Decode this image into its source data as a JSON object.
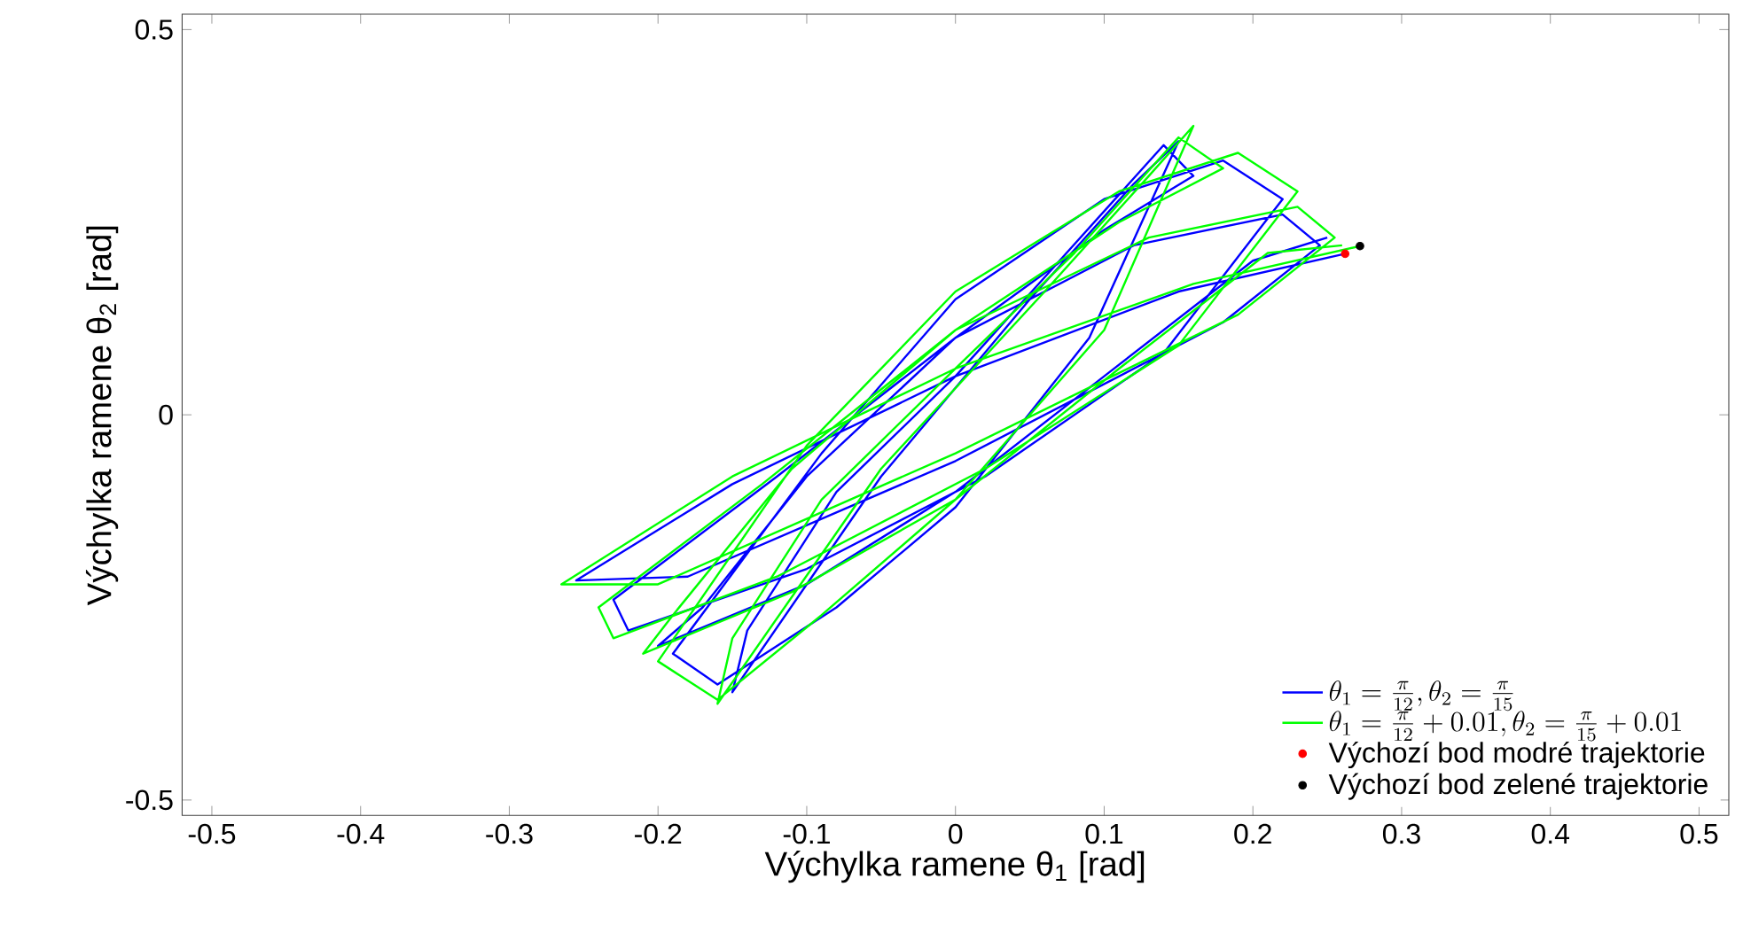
{
  "chart_data": {
    "type": "line",
    "xlabel": "Výchylka ramene θ$_{1}$ [rad]",
    "ylabel": "Výchylka ramene θ$_{2}$ [rad]",
    "xlim": [
      -0.52,
      0.52
    ],
    "ylim": [
      -0.52,
      0.52
    ],
    "xticks": [
      -0.5,
      -0.4,
      -0.3,
      -0.2,
      -0.1,
      0,
      0.1,
      0.2,
      0.3,
      0.4,
      0.5
    ],
    "yticks": [
      -0.5,
      0,
      0.5
    ],
    "grid": false,
    "legend": "bottom right",
    "series": [
      {
        "name": "\\theta_1 = \\frac{\\pi}{12}, \\theta_2 = \\frac{\\pi}{15}",
        "color": "#0000ff",
        "line_style": "solid",
        "marker": "none",
        "x": [
          0.262,
          0.15,
          0,
          -0.15,
          -0.255,
          -0.18,
          0,
          0.18,
          0.245,
          0.22,
          0.12,
          0,
          -0.12,
          -0.23,
          -0.22,
          -0.1,
          0.02,
          0.14,
          0.22,
          0.18,
          0.1,
          0,
          -0.09,
          -0.19,
          -0.16,
          -0.08,
          0,
          0.09,
          0.15,
          0.12,
          0.05,
          -0.05,
          -0.15,
          -0.14,
          -0.08,
          0,
          0.07,
          0.14,
          0.16,
          0.1,
          0,
          -0.1,
          -0.17,
          -0.2,
          -0.1,
          0,
          0.1,
          0.2,
          0.25
        ],
        "values": [
          0.209,
          0.16,
          0.05,
          -0.09,
          -0.215,
          -0.21,
          -0.06,
          0.12,
          0.22,
          0.26,
          0.22,
          0.1,
          -0.08,
          -0.24,
          -0.28,
          -0.2,
          -0.08,
          0.08,
          0.28,
          0.33,
          0.28,
          0.15,
          -0.05,
          -0.31,
          -0.35,
          -0.25,
          -0.12,
          0.1,
          0.355,
          0.3,
          0.15,
          -0.08,
          -0.36,
          -0.28,
          -0.1,
          0.05,
          0.2,
          0.35,
          0.31,
          0.24,
          0.1,
          -0.08,
          -0.25,
          -0.3,
          -0.22,
          -0.1,
          0.05,
          0.2,
          0.23
        ]
      },
      {
        "name": "\\theta_1 = \\frac{\\pi}{12} + 0.01, \\theta_2 = \\frac{\\pi}{15} + 0.01",
        "color": "#00ff00",
        "line_style": "solid",
        "marker": "none",
        "x": [
          0.272,
          0.16,
          0,
          -0.15,
          -0.265,
          -0.2,
          0,
          0.19,
          0.255,
          0.23,
          0.13,
          0,
          -0.13,
          -0.24,
          -0.23,
          -0.12,
          0.02,
          0.15,
          0.23,
          0.19,
          0.11,
          0,
          -0.1,
          -0.2,
          -0.16,
          -0.09,
          0,
          0.1,
          0.16,
          0.13,
          0.06,
          -0.05,
          -0.16,
          -0.15,
          -0.09,
          0,
          0.08,
          0.15,
          0.18,
          0.11,
          0,
          -0.11,
          -0.19,
          -0.21,
          -0.11,
          0,
          0.11,
          0.21,
          0.26
        ],
        "values": [
          0.219,
          0.17,
          0.06,
          -0.08,
          -0.22,
          -0.22,
          -0.05,
          0.13,
          0.23,
          0.27,
          0.23,
          0.11,
          -0.09,
          -0.25,
          -0.29,
          -0.21,
          -0.07,
          0.09,
          0.29,
          0.34,
          0.29,
          0.16,
          -0.04,
          -0.32,
          -0.37,
          -0.26,
          -0.11,
          0.11,
          0.375,
          0.31,
          0.16,
          -0.07,
          -0.375,
          -0.29,
          -0.11,
          0.06,
          0.21,
          0.36,
          0.32,
          0.25,
          0.11,
          -0.07,
          -0.26,
          -0.31,
          -0.23,
          -0.11,
          0.06,
          0.21,
          0.22
        ]
      },
      {
        "type": "scatter",
        "name": "Výchozí bod modré trajektorie",
        "color": "#ff0000",
        "marker": "circle",
        "x": [
          0.262
        ],
        "values": [
          0.209
        ]
      },
      {
        "type": "scatter",
        "name": "Výchozí bod zelené trajektorie",
        "color": "#000000",
        "marker": "circle",
        "x": [
          0.272
        ],
        "values": [
          0.219
        ]
      }
    ]
  }
}
